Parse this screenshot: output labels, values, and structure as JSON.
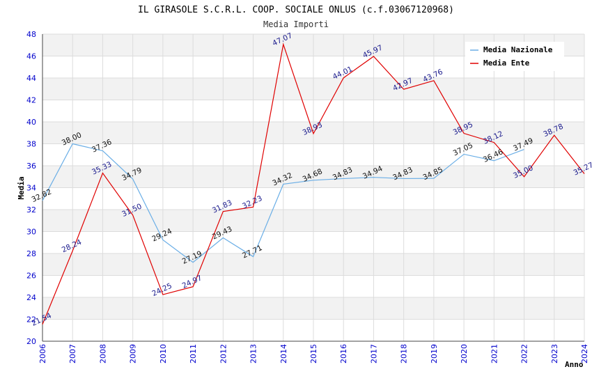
{
  "chart_data": {
    "type": "line",
    "title": "IL GIRASOLE S.C.R.L. COOP. SOCIALE ONLUS (c.f.03067120968)",
    "subtitle": "Media Importi",
    "xlabel": "Anno",
    "ylabel": "Media",
    "ylim": [
      20,
      48
    ],
    "y_ticks": [
      "20",
      "22",
      "24",
      "26",
      "28",
      "30",
      "32",
      "34",
      "36",
      "38",
      "40",
      "42",
      "44",
      "46",
      "48"
    ],
    "x": [
      "2006",
      "2007",
      "2008",
      "2009",
      "2010",
      "2011",
      "2012",
      "2013",
      "2014",
      "2015",
      "2016",
      "2017",
      "2018",
      "2019",
      "2020",
      "2021",
      "2022",
      "2023",
      "2024"
    ],
    "grid": true,
    "legend_position": "top-right",
    "series": [
      {
        "name": "Media Nazionale",
        "color": "#6aaee6",
        "x": [
          "2006",
          "2007",
          "2008",
          "2009",
          "2010",
          "2011",
          "2012",
          "2013",
          "2014",
          "2015",
          "2016",
          "2017",
          "2018",
          "2019",
          "2020",
          "2021",
          "2022"
        ],
        "values": [
          32.82,
          38.0,
          37.36,
          34.79,
          29.24,
          27.19,
          29.43,
          27.71,
          34.32,
          34.68,
          34.83,
          34.94,
          34.83,
          34.85,
          37.05,
          36.46,
          37.49
        ],
        "labels": [
          "32.82",
          "38.00",
          "37.36",
          "34.79",
          "29.24",
          "27.19",
          "29.43",
          "27.71",
          "34.32",
          "34.68",
          "34.83",
          "34.94",
          "34.83",
          "34.85",
          "37.05",
          "36.46",
          "37.49"
        ]
      },
      {
        "name": "Media Ente",
        "color": "#e00000",
        "x": [
          "2006",
          "2007",
          "2008",
          "2009",
          "2010",
          "2011",
          "2012",
          "2013",
          "2014",
          "2015",
          "2016",
          "2017",
          "2018",
          "2019",
          "2020",
          "2021",
          "2022",
          "2023",
          "2024"
        ],
        "values": [
          21.54,
          28.24,
          35.33,
          31.5,
          24.25,
          24.97,
          31.83,
          32.23,
          47.07,
          38.93,
          44.01,
          45.97,
          42.97,
          43.76,
          38.95,
          38.12,
          35.0,
          38.78,
          35.27
        ],
        "labels": [
          "21.54",
          "28.24",
          "35.33",
          "31.50",
          "24.25",
          "24.97",
          "31.83",
          "32.23",
          "47.07",
          "38.93",
          "44.01",
          "45.97",
          "42.97",
          "43.76",
          "38.95",
          "38.12",
          "35.00",
          "38.78",
          "35.27"
        ]
      }
    ]
  }
}
